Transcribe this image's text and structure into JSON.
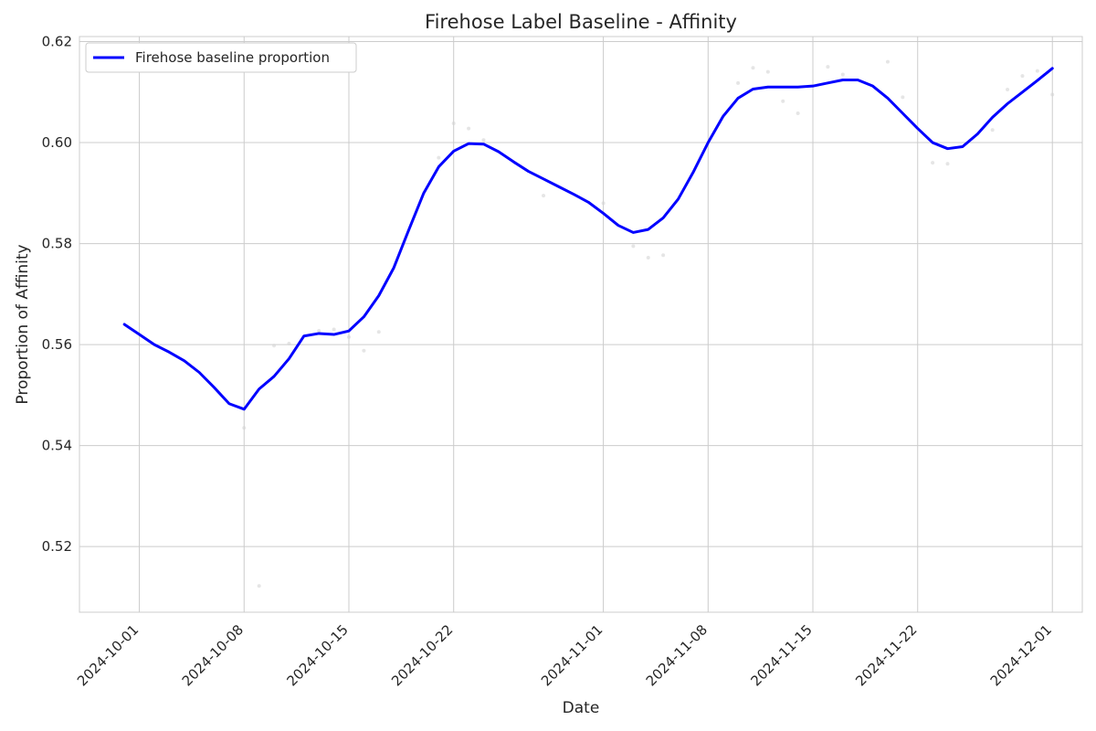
{
  "chart_data": {
    "type": "line",
    "title": "Firehose Label Baseline - Affinity",
    "xlabel": "Date",
    "ylabel": "Proportion of Affinity",
    "x_ticks": [
      "2024-10-01",
      "2024-10-08",
      "2024-10-15",
      "2024-10-22",
      "2024-11-01",
      "2024-11-08",
      "2024-11-15",
      "2024-11-22",
      "2024-12-01"
    ],
    "y_ticks": [
      "0.52",
      "0.54",
      "0.56",
      "0.58",
      "0.60",
      "0.62"
    ],
    "xlim": [
      "2024-09-27",
      "2024-12-03"
    ],
    "ylim": [
      0.507,
      0.621
    ],
    "grid": true,
    "legend_position": "top-left",
    "series": [
      {
        "name": "Firehose baseline proportion",
        "color": "#0000ff",
        "points": [
          [
            "2024-09-30",
            0.564
          ],
          [
            "2024-10-01",
            0.562
          ],
          [
            "2024-10-02",
            0.56
          ],
          [
            "2024-10-03",
            0.5585
          ],
          [
            "2024-10-04",
            0.5568
          ],
          [
            "2024-10-05",
            0.5545
          ],
          [
            "2024-10-06",
            0.5515
          ],
          [
            "2024-10-07",
            0.5483
          ],
          [
            "2024-10-08",
            0.5472
          ],
          [
            "2024-10-09",
            0.5512
          ],
          [
            "2024-10-10",
            0.5537
          ],
          [
            "2024-10-11",
            0.5572
          ],
          [
            "2024-10-12",
            0.5617
          ],
          [
            "2024-10-13",
            0.5622
          ],
          [
            "2024-10-14",
            0.562
          ],
          [
            "2024-10-15",
            0.5627
          ],
          [
            "2024-10-16",
            0.5655
          ],
          [
            "2024-10-17",
            0.5697
          ],
          [
            "2024-10-18",
            0.5752
          ],
          [
            "2024-10-19",
            0.5827
          ],
          [
            "2024-10-20",
            0.59
          ],
          [
            "2024-10-21",
            0.5952
          ],
          [
            "2024-10-22",
            0.5983
          ],
          [
            "2024-10-23",
            0.5998
          ],
          [
            "2024-10-24",
            0.5997
          ],
          [
            "2024-10-25",
            0.5982
          ],
          [
            "2024-10-26",
            0.5962
          ],
          [
            "2024-10-27",
            0.5943
          ],
          [
            "2024-10-28",
            0.5928
          ],
          [
            "2024-10-29",
            0.5913
          ],
          [
            "2024-10-30",
            0.5898
          ],
          [
            "2024-10-31",
            0.5882
          ],
          [
            "2024-11-01",
            0.586
          ],
          [
            "2024-11-02",
            0.5836
          ],
          [
            "2024-11-03",
            0.5822
          ],
          [
            "2024-11-04",
            0.5828
          ],
          [
            "2024-11-05",
            0.5851
          ],
          [
            "2024-11-06",
            0.5888
          ],
          [
            "2024-11-07",
            0.5941
          ],
          [
            "2024-11-08",
            0.6
          ],
          [
            "2024-11-09",
            0.6052
          ],
          [
            "2024-11-10",
            0.6088
          ],
          [
            "2024-11-11",
            0.6106
          ],
          [
            "2024-11-12",
            0.611
          ],
          [
            "2024-11-13",
            0.611
          ],
          [
            "2024-11-14",
            0.611
          ],
          [
            "2024-11-15",
            0.6112
          ],
          [
            "2024-11-16",
            0.6118
          ],
          [
            "2024-11-17",
            0.6124
          ],
          [
            "2024-11-18",
            0.6124
          ],
          [
            "2024-11-19",
            0.6112
          ],
          [
            "2024-11-20",
            0.6088
          ],
          [
            "2024-11-21",
            0.6058
          ],
          [
            "2024-11-22",
            0.6028
          ],
          [
            "2024-11-23",
            0.6
          ],
          [
            "2024-11-24",
            0.5988
          ],
          [
            "2024-11-25",
            0.5992
          ],
          [
            "2024-11-26",
            0.6017
          ],
          [
            "2024-11-27",
            0.605
          ],
          [
            "2024-11-28",
            0.6077
          ],
          [
            "2024-11-29",
            0.61
          ],
          [
            "2024-11-30",
            0.6123
          ],
          [
            "2024-12-01",
            0.6147
          ]
        ]
      }
    ],
    "scatter_points": [
      [
        "2024-10-08",
        0.5435
      ],
      [
        "2024-10-09",
        0.5122
      ],
      [
        "2024-10-10",
        0.5598
      ],
      [
        "2024-10-11",
        0.5602
      ],
      [
        "2024-10-13",
        0.5627
      ],
      [
        "2024-10-14",
        0.563
      ],
      [
        "2024-10-15",
        0.5615
      ],
      [
        "2024-10-16",
        0.5588
      ],
      [
        "2024-10-17",
        0.5625
      ],
      [
        "2024-10-21",
        0.597
      ],
      [
        "2024-10-22",
        0.6038
      ],
      [
        "2024-10-23",
        0.6028
      ],
      [
        "2024-10-24",
        0.6005
      ],
      [
        "2024-10-28",
        0.5895
      ],
      [
        "2024-11-01",
        0.588
      ],
      [
        "2024-11-03",
        0.5795
      ],
      [
        "2024-11-04",
        0.5772
      ],
      [
        "2024-11-05",
        0.5777
      ],
      [
        "2024-11-10",
        0.6118
      ],
      [
        "2024-11-11",
        0.6148
      ],
      [
        "2024-11-12",
        0.614
      ],
      [
        "2024-11-13",
        0.6082
      ],
      [
        "2024-11-14",
        0.6058
      ],
      [
        "2024-11-16",
        0.615
      ],
      [
        "2024-11-17",
        0.6135
      ],
      [
        "2024-11-20",
        0.616
      ],
      [
        "2024-11-21",
        0.609
      ],
      [
        "2024-11-23",
        0.596
      ],
      [
        "2024-11-24",
        0.5958
      ],
      [
        "2024-11-27",
        0.6025
      ],
      [
        "2024-11-28",
        0.6105
      ],
      [
        "2024-11-29",
        0.6132
      ],
      [
        "2024-11-30",
        0.6142
      ],
      [
        "2024-12-01",
        0.6095
      ]
    ]
  }
}
